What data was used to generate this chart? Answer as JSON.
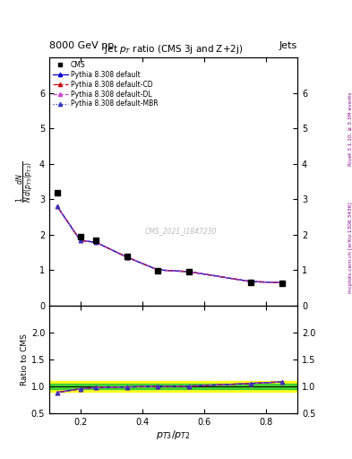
{
  "title": "Jet $p_T$ ratio (CMS 3j and Z+2j)",
  "header_left": "8000 GeV pp",
  "header_right": "Jets",
  "right_label_top": "Rivet 3.1.10, ≥ 3.3M events",
  "right_label_bottom": "mcplots.cern.ch [arXiv:1306.3436]",
  "watermark": "CMS_2021_I1847230",
  "x_data": [
    0.125,
    0.2,
    0.25,
    0.35,
    0.45,
    0.55,
    0.75,
    0.85
  ],
  "cms_y": [
    3.18,
    1.93,
    1.83,
    1.38,
    0.97,
    0.95,
    0.65,
    0.63
  ],
  "pythia_default_y": [
    2.8,
    1.83,
    1.78,
    1.36,
    1.0,
    0.95,
    0.67,
    0.64
  ],
  "pythia_cd_y": [
    2.8,
    1.83,
    1.78,
    1.36,
    1.0,
    0.95,
    0.67,
    0.64
  ],
  "pythia_dl_y": [
    2.8,
    1.83,
    1.78,
    1.36,
    1.0,
    0.95,
    0.67,
    0.64
  ],
  "pythia_mbr_y": [
    2.8,
    1.83,
    1.78,
    1.36,
    1.0,
    0.95,
    0.67,
    0.64
  ],
  "xr_pts": [
    0.125,
    0.2,
    0.25,
    0.35,
    0.45,
    0.55,
    0.75,
    0.85
  ],
  "ratio_default_pts": [
    0.882,
    0.95,
    0.975,
    0.985,
    1.0,
    1.0,
    1.05,
    1.08
  ],
  "ratio_cd_pts": [
    0.882,
    0.95,
    0.975,
    0.985,
    1.0,
    1.0,
    1.05,
    1.08
  ],
  "ratio_dl_pts": [
    0.882,
    0.95,
    0.975,
    0.985,
    1.0,
    1.0,
    1.05,
    1.08
  ],
  "ratio_mbr_pts": [
    0.882,
    0.95,
    0.975,
    0.985,
    1.0,
    1.0,
    1.05,
    1.08
  ],
  "color_default": "#0000cc",
  "color_cd": "#cc1111",
  "color_dl": "#cc44cc",
  "color_mbr": "#3333bb",
  "ls_default": "-",
  "ls_cd": "-.",
  "ls_dl": "--",
  "ls_mbr": ":",
  "xlim": [
    0.1,
    0.9
  ],
  "ylim_main": [
    0.0,
    7.0
  ],
  "ylim_ratio": [
    0.5,
    2.5
  ],
  "yticks_main": [
    0,
    1,
    2,
    3,
    4,
    5,
    6
  ],
  "yticks_ratio": [
    0.5,
    1.0,
    1.5,
    2.0
  ],
  "xticks": [
    0.2,
    0.4,
    0.6,
    0.8
  ]
}
